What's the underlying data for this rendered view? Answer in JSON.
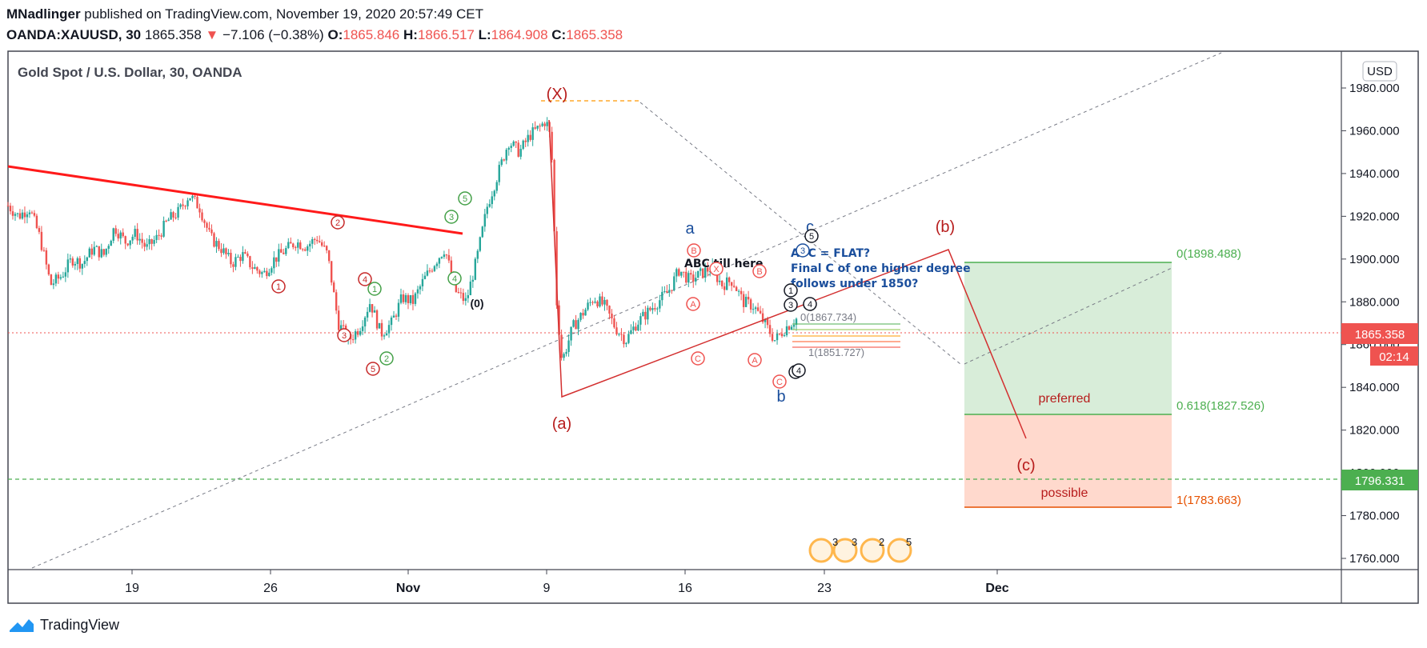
{
  "header": {
    "publisher": "MNadlinger",
    "published_text": "published on TradingView.com, November 19, 2020 20:57:49 CET",
    "symbol": "OANDA:XAUUSD, 30",
    "last": "1865.358",
    "change": "−7.106 (−0.38%)",
    "o_label": "O:",
    "o_value": "1865.846",
    "h_label": "H:",
    "h_value": "1866.517",
    "l_label": "L:",
    "l_value": "1864.908",
    "c_label": "C:",
    "c_value": "1865.358"
  },
  "chart_title": "Gold Spot / U.S. Dollar, 30, OANDA",
  "currency_button": "USD",
  "price_tag": {
    "value": "1865.358",
    "countdown": "02:14"
  },
  "green_tag": "1796.331",
  "footer_brand": "TradingView",
  "annotations": {
    "X": "(X)",
    "a_small": "(a)",
    "b_small": "(b)",
    "c_small": "(c)",
    "blue_a": "a",
    "blue_b": "b",
    "blue_c": "c",
    "abc_till_here": "ABC till here",
    "flat_note_1": "ABC = FLAT?",
    "flat_note_2": "Final C of one higher degree",
    "flat_note_3": "follows under 1850?",
    "zero": "(0)",
    "fib_0": "0(1898.488)",
    "fib_618": "0.618(1827.526)",
    "fib_1": "1(1783.663)",
    "preferred": "preferred",
    "possible": "possible",
    "fib_cluster_1": "0(1867.734)",
    "fib_cluster_2": "1(1851.727)"
  },
  "chart_data": {
    "type": "candlestick",
    "title": "Gold Spot / U.S. Dollar, 30, OANDA",
    "y_axis": {
      "min": 1750,
      "max": 1990,
      "ticks": [
        1760,
        1780,
        1800,
        1820,
        1840,
        1860,
        1880,
        1900,
        1920,
        1940,
        1960,
        1980
      ]
    },
    "x_axis": {
      "tick_labels": [
        "19",
        "26",
        "Nov",
        "9",
        "16",
        "23",
        "Dec"
      ]
    },
    "last_price": 1865.358,
    "price_path": [
      [
        0,
        1925
      ],
      [
        0.4,
        1920
      ],
      [
        0.8,
        1924
      ],
      [
        1.2,
        1910
      ],
      [
        1.6,
        1888
      ],
      [
        2,
        1892
      ],
      [
        2.4,
        1900
      ],
      [
        2.8,
        1898
      ],
      [
        3.2,
        1905
      ],
      [
        3.6,
        1902
      ],
      [
        4,
        1915
      ],
      [
        4.4,
        1908
      ],
      [
        4.8,
        1912
      ],
      [
        5.2,
        1905
      ],
      [
        5.6,
        1910
      ],
      [
        6,
        1918
      ],
      [
        6.4,
        1922
      ],
      [
        6.8,
        1930
      ],
      [
        7.2,
        1924
      ],
      [
        7.6,
        1910
      ],
      [
        8,
        1905
      ],
      [
        8.4,
        1898
      ],
      [
        8.8,
        1902
      ],
      [
        9.2,
        1896
      ],
      [
        9.6,
        1893
      ],
      [
        10,
        1900
      ],
      [
        10.4,
        1904
      ],
      [
        10.8,
        1908
      ],
      [
        11.2,
        1906
      ],
      [
        11.6,
        1910
      ],
      [
        12,
        1902
      ],
      [
        12.4,
        1870
      ],
      [
        12.8,
        1862
      ],
      [
        13.2,
        1868
      ],
      [
        13.6,
        1880
      ],
      [
        14,
        1865
      ],
      [
        14.4,
        1870
      ],
      [
        14.8,
        1882
      ],
      [
        15.2,
        1880
      ],
      [
        15.6,
        1890
      ],
      [
        16,
        1898
      ],
      [
        16.4,
        1905
      ],
      [
        16.8,
        1885
      ],
      [
        17.2,
        1880
      ],
      [
        17.6,
        1900
      ],
      [
        18,
        1925
      ],
      [
        18.4,
        1940
      ],
      [
        18.8,
        1955
      ],
      [
        19.2,
        1950
      ],
      [
        19.6,
        1958
      ],
      [
        20,
        1962
      ],
      [
        20.2,
        1965
      ],
      [
        20.4,
        1955
      ],
      [
        20.6,
        1880
      ],
      [
        20.8,
        1852
      ],
      [
        21.2,
        1868
      ],
      [
        21.6,
        1875
      ],
      [
        22,
        1882
      ],
      [
        22.4,
        1878
      ],
      [
        22.8,
        1868
      ],
      [
        23.2,
        1862
      ],
      [
        23.6,
        1870
      ],
      [
        24,
        1875
      ],
      [
        24.4,
        1880
      ],
      [
        24.8,
        1885
      ],
      [
        25.2,
        1895
      ],
      [
        25.6,
        1890
      ],
      [
        26,
        1893
      ],
      [
        26.4,
        1896
      ],
      [
        26.8,
        1888
      ],
      [
        27.2,
        1890
      ],
      [
        27.6,
        1880
      ],
      [
        28,
        1878
      ],
      [
        28.4,
        1870
      ],
      [
        28.8,
        1862
      ],
      [
        29.2,
        1868
      ],
      [
        29.6,
        1872
      ]
    ],
    "levels": [
      {
        "name": "fib 0",
        "value": 1898.488,
        "color": "#4caf50"
      },
      {
        "name": "fib 0.618",
        "value": 1827.526,
        "color": "#4caf50"
      },
      {
        "name": "fib 1",
        "value": 1783.663,
        "color": "#e65100"
      },
      {
        "name": "green dashed",
        "value": 1796.331,
        "color": "#4caf50"
      }
    ],
    "colors": {
      "up": "#26a69a",
      "down": "#ef5350",
      "trend": "#ff0000",
      "wave_red": "#b71c1c",
      "wave_green": "#43a047",
      "wave_blue": "#1a4e9c"
    }
  }
}
